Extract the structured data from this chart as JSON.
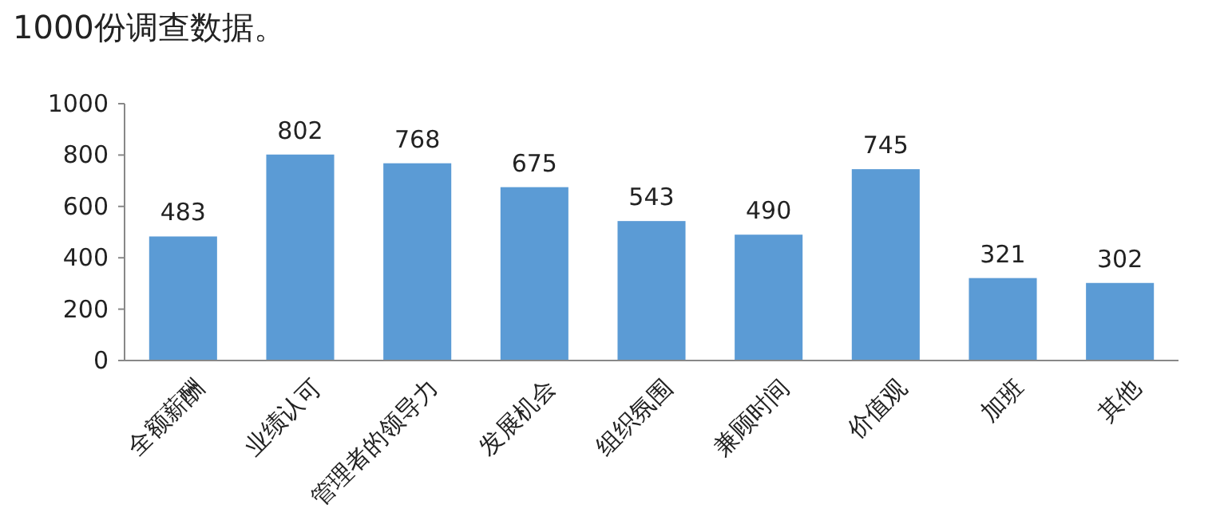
{
  "chart_data": {
    "type": "bar",
    "title": "1000份调查数据。",
    "categories": [
      "全额薪酬",
      "业绩认可",
      "管理者的领导力",
      "发展机会",
      "组织氛围",
      "兼顾时间",
      "价值观",
      "加班",
      "其他"
    ],
    "values": [
      483,
      802,
      768,
      675,
      543,
      490,
      745,
      321,
      302
    ],
    "color": "#5b9bd5",
    "ylim": [
      0,
      1000
    ],
    "yticks": [
      0,
      200,
      400,
      600,
      800,
      1000
    ],
    "data_labels": true,
    "grid": false
  }
}
